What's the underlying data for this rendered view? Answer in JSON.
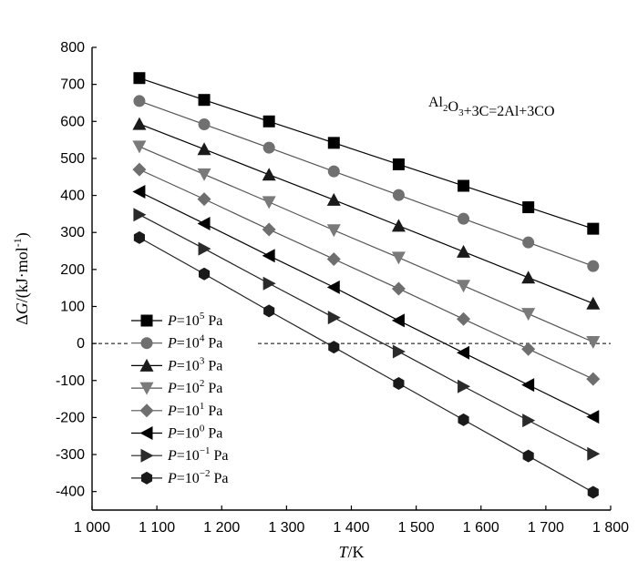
{
  "chart_data": {
    "type": "line",
    "annotation": {
      "text": "Al2O3+3C=2Al+3CO",
      "parts": [
        {
          "t": "Al",
          "sub": false
        },
        {
          "t": "2",
          "sub": true
        },
        {
          "t": "O",
          "sub": false
        },
        {
          "t": "3",
          "sub": true
        },
        {
          "t": "+3C=2Al+3CO",
          "sub": false
        }
      ]
    },
    "xlabel": {
      "italic": "T",
      "rest": "/K"
    },
    "ylabel": {
      "delta": "Δ",
      "italic": "G",
      "rest": "/(kJ·mol",
      "sup": "-1",
      "close": ")"
    },
    "xlim": [
      1000,
      1800
    ],
    "ylim": [
      -450,
      800
    ],
    "xticks": [
      1000,
      1100,
      1200,
      1300,
      1400,
      1500,
      1600,
      1700,
      1800
    ],
    "xtick_labels": [
      "1 000",
      "1 100",
      "1 200",
      "1 300",
      "1 400",
      "1 500",
      "1 600",
      "1 700",
      "1 800"
    ],
    "yticks": [
      -400,
      -300,
      -200,
      -100,
      0,
      100,
      200,
      300,
      400,
      500,
      600,
      700,
      800
    ],
    "ytick_labels": [
      "-400",
      "-300",
      "-200",
      "-100",
      "0",
      "100",
      "200",
      "300",
      "400",
      "500",
      "600",
      "700",
      "800"
    ],
    "zero_line": {
      "y": 0,
      "style": "dashed"
    },
    "x": [
      1073,
      1173,
      1273,
      1373,
      1473,
      1573,
      1673,
      1773
    ],
    "series": [
      {
        "name": "P=10^5 Pa",
        "label_prefix": "P",
        "label_eq": "=10",
        "label_exp": "5",
        "label_unit": " Pa",
        "marker": "square",
        "color": "#000000",
        "line_color": "#000000",
        "values": [
          717,
          658,
          600,
          542,
          484,
          426,
          368,
          310
        ]
      },
      {
        "name": "P=10^4 Pa",
        "label_prefix": "P",
        "label_eq": "=10",
        "label_exp": "4",
        "label_unit": " Pa",
        "marker": "circle",
        "color": "#707070",
        "line_color": "#555555",
        "values": [
          655,
          592,
          529,
          465,
          401,
          337,
          273,
          209
        ]
      },
      {
        "name": "P=10^3 Pa",
        "label_prefix": "P",
        "label_eq": "=10",
        "label_exp": "3",
        "label_unit": " Pa",
        "marker": "triangle-up",
        "color": "#1a1a1a",
        "line_color": "#000000",
        "values": [
          593,
          525,
          456,
          388,
          318,
          248,
          178,
          108
        ]
      },
      {
        "name": "P=10^2 Pa",
        "label_prefix": "P",
        "label_eq": "=10",
        "label_exp": "2",
        "label_unit": " Pa",
        "marker": "triangle-down",
        "color": "#7a7a7a",
        "line_color": "#555555",
        "values": [
          532,
          457,
          382,
          306,
          232,
          156,
          80,
          4
        ]
      },
      {
        "name": "P=10^1 Pa",
        "label_prefix": "P",
        "label_eq": "=10",
        "label_exp": "1",
        "label_unit": " Pa",
        "marker": "diamond",
        "color": "#6e6e6e",
        "line_color": "#555555",
        "values": [
          470,
          390,
          308,
          228,
          148,
          66,
          -15,
          -96
        ]
      },
      {
        "name": "P=10^0 Pa",
        "label_prefix": "P",
        "label_eq": "=10",
        "label_exp": "0",
        "label_unit": " Pa",
        "marker": "triangle-left",
        "color": "#000000",
        "line_color": "#000000",
        "values": [
          410,
          324,
          237,
          152,
          62,
          -25,
          -112,
          -198
        ]
      },
      {
        "name": "P=10^-1 Pa",
        "label_prefix": "P",
        "label_eq": "=10",
        "label_exp": "−1",
        "label_unit": " Pa",
        "marker": "triangle-right",
        "color": "#2a2a2a",
        "line_color": "#222222",
        "values": [
          348,
          256,
          162,
          70,
          -22,
          -116,
          -208,
          -298
        ]
      },
      {
        "name": "P=10^-2 Pa",
        "label_prefix": "P",
        "label_eq": "=10",
        "label_exp": "−2",
        "label_unit": " Pa",
        "marker": "hexagon",
        "color": "#1a1a1a",
        "line_color": "#222222",
        "values": [
          286,
          188,
          88,
          -10,
          -108,
          -206,
          -304,
          -402
        ]
      }
    ],
    "legend_placement": "lower-left"
  }
}
